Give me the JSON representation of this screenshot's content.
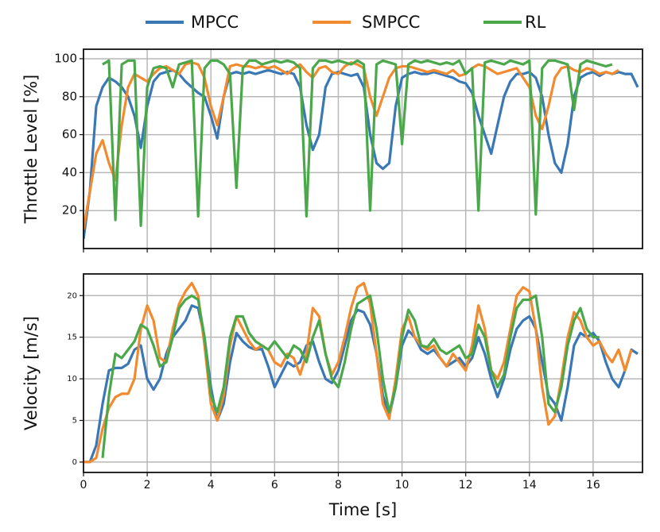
{
  "chart_data": [
    {
      "type": "line",
      "ylabel": "Throttle Level [%]",
      "xlim": [
        0,
        17.55
      ],
      "ylim": [
        0,
        105
      ],
      "xticks": [
        0,
        2,
        4,
        6,
        8,
        10,
        12,
        14,
        16
      ],
      "yticks": [
        20,
        40,
        60,
        80,
        100
      ],
      "grid": true,
      "legend": "top",
      "x": [
        0,
        0.2,
        0.4,
        0.6,
        0.8,
        1,
        1.2,
        1.4,
        1.6,
        1.8,
        2,
        2.2,
        2.4,
        2.6,
        2.8,
        3,
        3.2,
        3.4,
        3.6,
        3.8,
        4,
        4.2,
        4.4,
        4.6,
        4.8,
        5,
        5.2,
        5.4,
        5.6,
        5.8,
        6,
        6.2,
        6.4,
        6.6,
        6.8,
        7,
        7.2,
        7.4,
        7.6,
        7.8,
        8,
        8.2,
        8.4,
        8.6,
        8.8,
        9,
        9.2,
        9.4,
        9.6,
        9.8,
        10,
        10.2,
        10.4,
        10.6,
        10.8,
        11,
        11.2,
        11.4,
        11.6,
        11.8,
        12,
        12.2,
        12.4,
        12.6,
        12.8,
        13,
        13.2,
        13.4,
        13.6,
        13.8,
        14,
        14.2,
        14.4,
        14.6,
        14.8,
        15,
        15.2,
        15.4,
        15.6,
        15.8,
        16,
        16.2,
        16.4,
        16.6,
        16.8,
        17,
        17.2,
        17.4
      ],
      "series": [
        {
          "name": "MPCC",
          "color": "#3a78b5",
          "values": [
            5,
            30,
            75,
            85,
            90,
            88,
            85,
            80,
            70,
            53,
            75,
            88,
            92,
            93,
            94,
            92,
            88,
            85,
            82,
            80,
            70,
            58,
            80,
            92,
            93,
            92,
            93,
            92,
            93,
            94,
            93,
            92,
            93,
            92,
            85,
            65,
            52,
            60,
            85,
            92,
            93,
            92,
            91,
            92,
            85,
            60,
            45,
            42,
            45,
            75,
            90,
            92,
            93,
            92,
            92,
            93,
            92,
            91,
            90,
            88,
            87,
            82,
            70,
            60,
            50,
            65,
            80,
            88,
            92,
            92,
            93,
            90,
            80,
            60,
            45,
            40,
            55,
            80,
            90,
            92,
            93,
            91,
            93,
            92,
            93,
            92,
            92,
            85
          ]
        },
        {
          "name": "SMPCC",
          "color": "#f28b30",
          "values": [
            10,
            30,
            50,
            57,
            45,
            36,
            65,
            85,
            92,
            90,
            88,
            92,
            95,
            96,
            94,
            92,
            97,
            98,
            97,
            90,
            75,
            65,
            80,
            96,
            97,
            96,
            96,
            95,
            96,
            95,
            96,
            94,
            92,
            95,
            97,
            93,
            90,
            95,
            96,
            93,
            92,
            96,
            98,
            97,
            95,
            80,
            70,
            80,
            90,
            95,
            96,
            96,
            95,
            94,
            93,
            94,
            93,
            92,
            94,
            91,
            92,
            95,
            97,
            96,
            94,
            92,
            93,
            94,
            95,
            90,
            85,
            70,
            63,
            75,
            90,
            95,
            96,
            94,
            93,
            95,
            94,
            92,
            93,
            92,
            94,
            null,
            null,
            null
          ]
        },
        {
          "name": "RL",
          "color": "#4aa84a",
          "values": [
            null,
            null,
            null,
            97,
            99,
            15,
            97,
            99,
            99,
            12,
            85,
            95,
            96,
            95,
            85,
            97,
            98,
            99,
            17,
            95,
            99,
            99,
            97,
            92,
            32,
            95,
            99,
            99,
            97,
            98,
            99,
            98,
            99,
            98,
            95,
            17,
            95,
            99,
            99,
            98,
            99,
            98,
            97,
            99,
            97,
            20,
            97,
            99,
            98,
            97,
            55,
            97,
            99,
            98,
            99,
            98,
            97,
            98,
            97,
            99,
            92,
            95,
            20,
            98,
            99,
            98,
            97,
            99,
            98,
            97,
            99,
            18,
            95,
            99,
            99,
            98,
            97,
            73,
            97,
            99,
            98,
            97,
            96,
            97,
            null,
            null,
            null,
            null
          ]
        }
      ]
    },
    {
      "type": "line",
      "xlabel": "Time [s]",
      "ylabel": "Velocity [m/s]",
      "xlim": [
        0,
        17.55
      ],
      "ylim": [
        -1.25,
        22.6
      ],
      "xticks": [
        0,
        2,
        4,
        6,
        8,
        10,
        12,
        14,
        16
      ],
      "yticks": [
        0,
        5,
        10,
        15,
        20
      ],
      "grid": true,
      "x": [
        0,
        0.2,
        0.4,
        0.6,
        0.8,
        1,
        1.2,
        1.4,
        1.6,
        1.8,
        2,
        2.2,
        2.4,
        2.6,
        2.8,
        3,
        3.2,
        3.4,
        3.6,
        3.8,
        4,
        4.2,
        4.4,
        4.6,
        4.8,
        5,
        5.2,
        5.4,
        5.6,
        5.8,
        6,
        6.2,
        6.4,
        6.6,
        6.8,
        7,
        7.2,
        7.4,
        7.6,
        7.8,
        8,
        8.2,
        8.4,
        8.6,
        8.8,
        9,
        9.2,
        9.4,
        9.6,
        9.8,
        10,
        10.2,
        10.4,
        10.6,
        10.8,
        11,
        11.2,
        11.4,
        11.6,
        11.8,
        12,
        12.2,
        12.4,
        12.6,
        12.8,
        13,
        13.2,
        13.4,
        13.6,
        13.8,
        14,
        14.2,
        14.4,
        14.6,
        14.8,
        15,
        15.2,
        15.4,
        15.6,
        15.8,
        16,
        16.2,
        16.4,
        16.6,
        16.8,
        17,
        17.2,
        17.4
      ],
      "series": [
        {
          "color": "#3a78b5",
          "values": [
            0,
            0,
            2,
            7,
            11,
            11.3,
            11.3,
            11.8,
            13.5,
            14,
            10,
            8.7,
            10,
            13,
            15,
            16,
            17,
            18.8,
            18.5,
            15,
            9,
            5,
            7,
            12,
            15.5,
            14.5,
            13.8,
            13.5,
            13.6,
            11.5,
            9,
            10.5,
            12,
            11.5,
            12,
            14,
            14.5,
            12,
            10,
            9.5,
            11,
            14,
            17,
            18.3,
            18,
            16.5,
            13,
            8,
            5.5,
            9,
            14,
            15.8,
            15,
            13.5,
            13,
            13.5,
            12.5,
            11.5,
            12,
            12.5,
            11.5,
            12.5,
            15,
            13,
            10,
            7.8,
            10,
            13.5,
            16,
            17,
            17.5,
            16,
            12,
            8,
            7,
            5,
            9,
            14,
            15.5,
            15,
            15.5,
            14.5,
            12,
            10,
            9,
            11,
            13.5,
            13
          ]
        },
        {
          "color": "#f28b30",
          "values": [
            0,
            0,
            0.5,
            4,
            6.5,
            7.8,
            8.2,
            8.2,
            10,
            16,
            18.8,
            17,
            12.5,
            12,
            16,
            19,
            20.5,
            21.5,
            20,
            14,
            7,
            5,
            8,
            14,
            17.5,
            16,
            14.5,
            13.5,
            14,
            13.5,
            12,
            11.5,
            13,
            12.5,
            10.5,
            13,
            18.5,
            17.5,
            13,
            10.5,
            12,
            15,
            18.5,
            21,
            21.5,
            19,
            13,
            7,
            5.2,
            10,
            16,
            17.5,
            15,
            14,
            13.5,
            14,
            12.5,
            11.5,
            13,
            12,
            11,
            14,
            18.8,
            16,
            11,
            10,
            12,
            16,
            20,
            21,
            20.5,
            16,
            9,
            4.5,
            5.5,
            10,
            15,
            18,
            17,
            15,
            14,
            14.5,
            13,
            12,
            13.5,
            11,
            13.5,
            null
          ]
        },
        {
          "color": "#4aa84a",
          "values": [
            null,
            null,
            null,
            0.5,
            8,
            13,
            12.5,
            13.5,
            14.5,
            16.5,
            16,
            14,
            11.5,
            12,
            15,
            18.5,
            19.5,
            20,
            19.5,
            15,
            8,
            6,
            9,
            15,
            17.5,
            17.5,
            15.5,
            14.5,
            14,
            13.5,
            14.5,
            13.5,
            12.5,
            14,
            13.5,
            12,
            15,
            17,
            13,
            10,
            9,
            12,
            16,
            19,
            19.5,
            20,
            16,
            10,
            6,
            9,
            15,
            18.3,
            17,
            14,
            13.8,
            14.8,
            13.5,
            13,
            13.5,
            14,
            12.5,
            13,
            16.5,
            15,
            11,
            9,
            10.5,
            15,
            18.5,
            19.5,
            19.5,
            20,
            15,
            7,
            6,
            9,
            14,
            17,
            18.5,
            16,
            15,
            15,
            null,
            null,
            null,
            null,
            null,
            null
          ]
        }
      ]
    }
  ]
}
